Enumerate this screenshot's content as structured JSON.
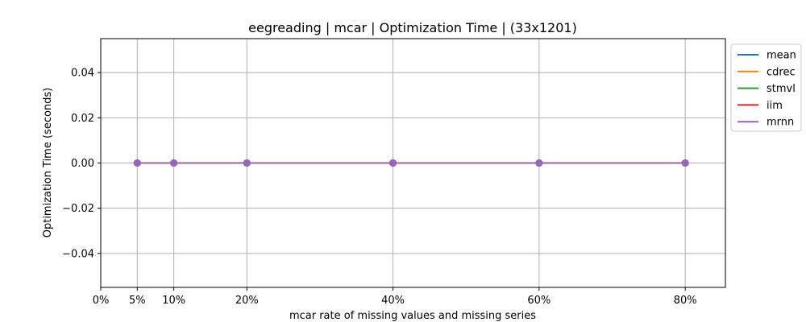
{
  "chart_data": {
    "type": "line",
    "title": "eegreading | mcar | Optimization Time | (33x1201)",
    "xlabel": "mcar rate of missing values and missing series",
    "ylabel": "Optimization Time (seconds)",
    "x": [
      0.05,
      0.1,
      0.2,
      0.4,
      0.6,
      0.8
    ],
    "xlim": [
      0.0,
      0.855
    ],
    "ylim": [
      -0.055,
      0.055
    ],
    "xticks": [
      0.0,
      0.05,
      0.1,
      0.2,
      0.4,
      0.6,
      0.8
    ],
    "xtick_labels": [
      "0%",
      "5%",
      "10%",
      "20%",
      "40%",
      "60%",
      "80%"
    ],
    "yticks": [
      -0.04,
      -0.02,
      0.0,
      0.02,
      0.04
    ],
    "ytick_labels": [
      "−0.04",
      "−0.02",
      "0.00",
      "0.02",
      "0.04"
    ],
    "grid": true,
    "legend_position": "outside-top-right",
    "series": [
      {
        "name": "mean",
        "color": "#1f77b4",
        "values": [
          0,
          0,
          0,
          0,
          0,
          0
        ]
      },
      {
        "name": "cdrec",
        "color": "#ff7f0e",
        "values": [
          0,
          0,
          0,
          0,
          0,
          0
        ]
      },
      {
        "name": "stmvl",
        "color": "#2ca02c",
        "values": [
          0,
          0,
          0,
          0,
          0,
          0
        ]
      },
      {
        "name": "iim",
        "color": "#d62728",
        "values": [
          0,
          0,
          0,
          0,
          0,
          0
        ]
      },
      {
        "name": "mrnn",
        "color": "#9467bd",
        "values": [
          0,
          0,
          0,
          0,
          0,
          0
        ]
      }
    ]
  }
}
